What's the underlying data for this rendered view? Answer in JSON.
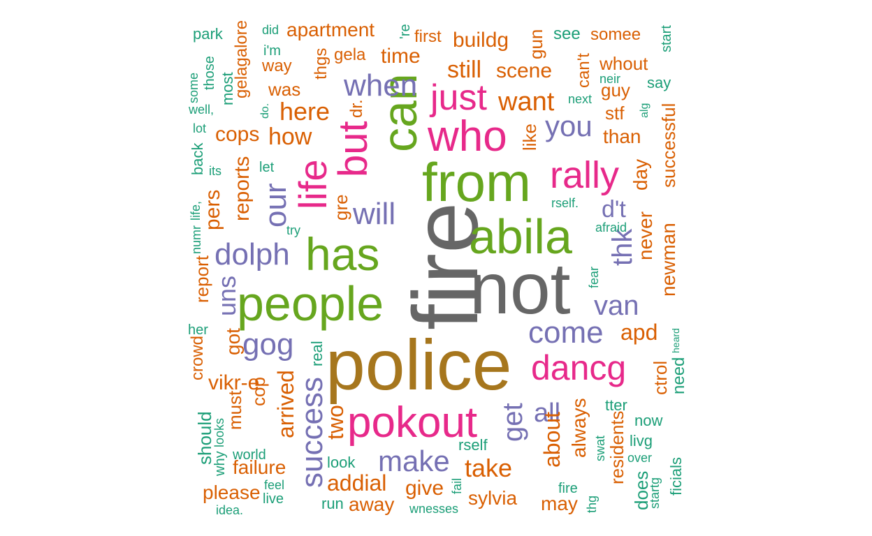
{
  "colors": {
    "gray": "#666666",
    "brown": "#A6761D",
    "green": "#66A61E",
    "pink": "#E7298A",
    "purple": "#7570B3",
    "orange": "#D95F02",
    "teal": "#1B9E77"
  },
  "words": [
    {
      "text": "fire",
      "color": "gray"
    },
    {
      "text": "not",
      "color": "gray"
    },
    {
      "text": "police",
      "color": "brown"
    },
    {
      "text": "can",
      "color": "green"
    },
    {
      "text": "from",
      "color": "green"
    },
    {
      "text": "abila",
      "color": "green"
    },
    {
      "text": "people",
      "color": "green"
    },
    {
      "text": "has",
      "color": "green"
    },
    {
      "text": "who",
      "color": "pink"
    },
    {
      "text": "just",
      "color": "pink"
    },
    {
      "text": "but",
      "color": "pink"
    },
    {
      "text": "life",
      "color": "pink"
    },
    {
      "text": "rally",
      "color": "pink"
    },
    {
      "text": "pokout",
      "color": "pink"
    },
    {
      "text": "dancg",
      "color": "pink"
    },
    {
      "text": "when",
      "color": "purple"
    },
    {
      "text": "you",
      "color": "purple"
    },
    {
      "text": "will",
      "color": "purple"
    },
    {
      "text": "our",
      "color": "purple"
    },
    {
      "text": "dolph",
      "color": "purple"
    },
    {
      "text": "d't",
      "color": "purple"
    },
    {
      "text": "thk",
      "color": "purple"
    },
    {
      "text": "van",
      "color": "purple"
    },
    {
      "text": "come",
      "color": "purple"
    },
    {
      "text": "gog",
      "color": "purple"
    },
    {
      "text": "success",
      "color": "purple"
    },
    {
      "text": "get",
      "color": "purple"
    },
    {
      "text": "all",
      "color": "purple"
    },
    {
      "text": "make",
      "color": "purple"
    },
    {
      "text": "uns",
      "color": "purple"
    },
    {
      "text": "apartment",
      "color": "orange"
    },
    {
      "text": "first",
      "color": "orange"
    },
    {
      "text": "buildg",
      "color": "orange"
    },
    {
      "text": "gun",
      "color": "orange"
    },
    {
      "text": "somee",
      "color": "orange"
    },
    {
      "text": "gelagalore",
      "color": "orange"
    },
    {
      "text": "gela",
      "color": "orange"
    },
    {
      "text": "time",
      "color": "orange"
    },
    {
      "text": "way",
      "color": "orange"
    },
    {
      "text": "still",
      "color": "orange"
    },
    {
      "text": "scene",
      "color": "orange"
    },
    {
      "text": "can't",
      "color": "orange"
    },
    {
      "text": "whout",
      "color": "orange"
    },
    {
      "text": "was",
      "color": "orange"
    },
    {
      "text": "thgs",
      "color": "orange"
    },
    {
      "text": "guy",
      "color": "orange"
    },
    {
      "text": "want",
      "color": "orange"
    },
    {
      "text": "here",
      "color": "orange"
    },
    {
      "text": "dr.",
      "color": "orange"
    },
    {
      "text": "stf",
      "color": "orange"
    },
    {
      "text": "cops",
      "color": "orange"
    },
    {
      "text": "how",
      "color": "orange"
    },
    {
      "text": "like",
      "color": "orange"
    },
    {
      "text": "than",
      "color": "orange"
    },
    {
      "text": "reports",
      "color": "orange"
    },
    {
      "text": "day",
      "color": "orange"
    },
    {
      "text": "successful",
      "color": "orange"
    },
    {
      "text": "pers",
      "color": "orange"
    },
    {
      "text": "gre",
      "color": "orange"
    },
    {
      "text": "never",
      "color": "orange"
    },
    {
      "text": "newman",
      "color": "orange"
    },
    {
      "text": "report",
      "color": "orange"
    },
    {
      "text": "apd",
      "color": "orange"
    },
    {
      "text": "got",
      "color": "orange"
    },
    {
      "text": "crowd",
      "color": "orange"
    },
    {
      "text": "vikr-e",
      "color": "orange"
    },
    {
      "text": "arrived",
      "color": "orange"
    },
    {
      "text": "cop",
      "color": "orange"
    },
    {
      "text": "must",
      "color": "orange"
    },
    {
      "text": "two",
      "color": "orange"
    },
    {
      "text": "about",
      "color": "orange"
    },
    {
      "text": "always",
      "color": "orange"
    },
    {
      "text": "ctrol",
      "color": "orange"
    },
    {
      "text": "residents",
      "color": "orange"
    },
    {
      "text": "take",
      "color": "orange"
    },
    {
      "text": "addial",
      "color": "orange"
    },
    {
      "text": "failure",
      "color": "orange"
    },
    {
      "text": "give",
      "color": "orange"
    },
    {
      "text": "sylvia",
      "color": "orange"
    },
    {
      "text": "please",
      "color": "orange"
    },
    {
      "text": "away",
      "color": "orange"
    },
    {
      "text": "may",
      "color": "orange"
    },
    {
      "text": "park",
      "color": "teal"
    },
    {
      "text": "did",
      "color": "teal"
    },
    {
      "text": "'re",
      "color": "teal"
    },
    {
      "text": "see",
      "color": "teal"
    },
    {
      "text": "start",
      "color": "teal"
    },
    {
      "text": "i'm",
      "color": "teal"
    },
    {
      "text": "some",
      "color": "teal"
    },
    {
      "text": "those",
      "color": "teal"
    },
    {
      "text": "most",
      "color": "teal"
    },
    {
      "text": "neir",
      "color": "teal"
    },
    {
      "text": "say",
      "color": "teal"
    },
    {
      "text": "next",
      "color": "teal"
    },
    {
      "text": "well,",
      "color": "teal"
    },
    {
      "text": "do.",
      "color": "teal"
    },
    {
      "text": "alg",
      "color": "teal"
    },
    {
      "text": "lot",
      "color": "teal"
    },
    {
      "text": "back",
      "color": "teal"
    },
    {
      "text": "its",
      "color": "teal"
    },
    {
      "text": "let",
      "color": "teal"
    },
    {
      "text": "life,",
      "color": "teal"
    },
    {
      "text": "rself.",
      "color": "teal"
    },
    {
      "text": "numr",
      "color": "teal"
    },
    {
      "text": "try",
      "color": "teal"
    },
    {
      "text": "afraid",
      "color": "teal"
    },
    {
      "text": "fear",
      "color": "teal"
    },
    {
      "text": "her",
      "color": "teal"
    },
    {
      "text": "heard",
      "color": "teal"
    },
    {
      "text": "real",
      "color": "teal"
    },
    {
      "text": "need",
      "color": "teal"
    },
    {
      "text": "tter",
      "color": "teal"
    },
    {
      "text": "should",
      "color": "teal"
    },
    {
      "text": "looks",
      "color": "teal"
    },
    {
      "text": "now",
      "color": "teal"
    },
    {
      "text": "rself",
      "color": "teal"
    },
    {
      "text": "swat",
      "color": "teal"
    },
    {
      "text": "livg",
      "color": "teal"
    },
    {
      "text": "why",
      "color": "teal"
    },
    {
      "text": "world",
      "color": "teal"
    },
    {
      "text": "look",
      "color": "teal"
    },
    {
      "text": "over",
      "color": "teal"
    },
    {
      "text": "does",
      "color": "teal"
    },
    {
      "text": "startg",
      "color": "teal"
    },
    {
      "text": "ficials",
      "color": "teal"
    },
    {
      "text": "feel",
      "color": "teal"
    },
    {
      "text": "fail",
      "color": "teal"
    },
    {
      "text": "fire",
      "color": "teal"
    },
    {
      "text": "live",
      "color": "teal"
    },
    {
      "text": "run",
      "color": "teal"
    },
    {
      "text": "thg",
      "color": "teal"
    },
    {
      "text": "idea.",
      "color": "teal"
    },
    {
      "text": "wnesses",
      "color": "teal"
    }
  ]
}
